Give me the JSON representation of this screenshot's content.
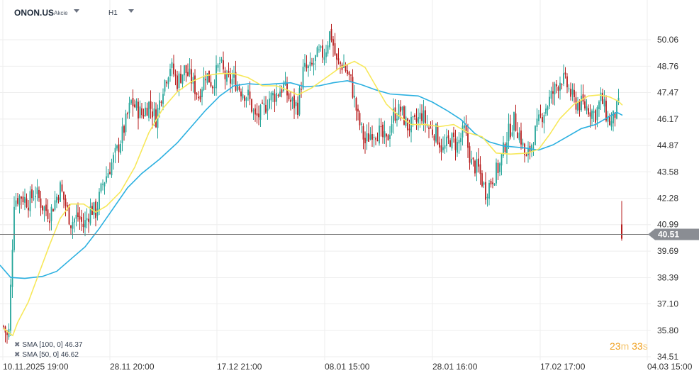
{
  "header": {
    "symbol": "ONON.US",
    "symbol_type": "Akcie",
    "timeframe": "H1"
  },
  "colors": {
    "up": "#26a69a",
    "down": "#b71c1c",
    "sma50": "#f7e85a",
    "sma100": "#2bb0e0",
    "price_line": "#777777",
    "price_tag": "#8a8d93",
    "grid": "#eeeeee"
  },
  "indicators": [
    {
      "label": "SMA [100, 0]",
      "value": "46.37"
    },
    {
      "label": "SMA [50, 0]",
      "value": "46.62"
    }
  ],
  "countdown": {
    "minutes": "23",
    "minutes_unit": "m",
    "seconds": "33",
    "seconds_unit": "s"
  },
  "chart_data": {
    "type": "candlestick",
    "y_axis": {
      "ticks": [
        "50.06",
        "48.76",
        "47.47",
        "46.17",
        "44.87",
        "43.58",
        "42.28",
        "40.99",
        "39.69",
        "38.39",
        "37.10",
        "35.80",
        "34.51"
      ],
      "range": [
        34.51,
        51.3
      ],
      "position": "right"
    },
    "x_axis": {
      "ticks": [
        "10.11.2025  19:00",
        "28.11  20:00",
        "17.12  21:00",
        "08.01  15:00",
        "28.01  16:00",
        "17.02  17:00",
        "04.03  15:00"
      ]
    },
    "current_price": {
      "value": 40.51,
      "label": "40.51"
    },
    "grid": true,
    "series": [
      {
        "name": "SMA [100, 0]",
        "kind": "line",
        "points": [
          [
            0,
            39.0
          ],
          [
            15,
            38.4
          ],
          [
            35,
            38.35
          ],
          [
            60,
            38.45
          ],
          [
            80,
            38.7
          ],
          [
            100,
            39.3
          ],
          [
            120,
            39.9
          ],
          [
            140,
            40.8
          ],
          [
            160,
            41.8
          ],
          [
            180,
            42.8
          ],
          [
            200,
            43.5
          ],
          [
            225,
            44.2
          ],
          [
            250,
            45.0
          ],
          [
            270,
            45.8
          ],
          [
            290,
            46.6
          ],
          [
            310,
            47.3
          ],
          [
            330,
            47.8
          ],
          [
            350,
            47.9
          ],
          [
            370,
            47.85
          ],
          [
            390,
            47.9
          ],
          [
            410,
            47.95
          ],
          [
            430,
            47.75
          ],
          [
            450,
            47.8
          ],
          [
            470,
            47.95
          ],
          [
            490,
            48.05
          ],
          [
            510,
            47.85
          ],
          [
            530,
            47.6
          ],
          [
            550,
            47.4
          ],
          [
            570,
            47.35
          ],
          [
            590,
            47.3
          ],
          [
            610,
            47.0
          ],
          [
            630,
            46.6
          ],
          [
            650,
            46.15
          ],
          [
            670,
            45.45
          ],
          [
            690,
            45.05
          ],
          [
            710,
            44.85
          ],
          [
            740,
            44.75
          ],
          [
            760,
            44.65
          ],
          [
            780,
            44.9
          ],
          [
            800,
            45.3
          ],
          [
            820,
            45.7
          ],
          [
            840,
            45.9
          ],
          [
            860,
            46.3
          ],
          [
            870,
            46.5
          ],
          [
            878,
            46.35
          ]
        ]
      },
      {
        "name": "SMA [50, 0]",
        "kind": "line",
        "points": [
          [
            5,
            35.9
          ],
          [
            12,
            35.7
          ],
          [
            18,
            35.55
          ],
          [
            25,
            36.2
          ],
          [
            40,
            37.2
          ],
          [
            55,
            38.6
          ],
          [
            70,
            40.0
          ],
          [
            85,
            41.3
          ],
          [
            100,
            42.0
          ],
          [
            118,
            42.0
          ],
          [
            135,
            41.6
          ],
          [
            150,
            41.9
          ],
          [
            170,
            42.6
          ],
          [
            190,
            43.8
          ],
          [
            210,
            45.5
          ],
          [
            230,
            46.7
          ],
          [
            250,
            47.5
          ],
          [
            270,
            48.0
          ],
          [
            290,
            48.3
          ],
          [
            310,
            48.4
          ],
          [
            330,
            48.4
          ],
          [
            350,
            48.2
          ],
          [
            370,
            47.8
          ],
          [
            390,
            47.8
          ],
          [
            405,
            47.6
          ],
          [
            420,
            47.35
          ],
          [
            440,
            47.7
          ],
          [
            460,
            48.2
          ],
          [
            480,
            48.7
          ],
          [
            500,
            49.0
          ],
          [
            515,
            48.7
          ],
          [
            530,
            47.8
          ],
          [
            545,
            46.9
          ],
          [
            560,
            46.4
          ],
          [
            580,
            45.9
          ],
          [
            600,
            45.9
          ],
          [
            620,
            45.8
          ],
          [
            640,
            45.9
          ],
          [
            660,
            45.5
          ],
          [
            680,
            45.3
          ],
          [
            700,
            44.5
          ],
          [
            720,
            44.45
          ],
          [
            745,
            44.5
          ],
          [
            760,
            44.7
          ],
          [
            775,
            45.4
          ],
          [
            790,
            46.2
          ],
          [
            810,
            46.9
          ],
          [
            830,
            47.3
          ],
          [
            845,
            47.35
          ],
          [
            860,
            47.25
          ],
          [
            872,
            47.05
          ],
          [
            878,
            46.85
          ]
        ]
      },
      {
        "name": "price",
        "kind": "candle",
        "anchors": [
          [
            5,
            36.0
          ],
          [
            12,
            35.3
          ],
          [
            20,
            42.2
          ],
          [
            30,
            42.4
          ],
          [
            40,
            42.1
          ],
          [
            50,
            42.6
          ],
          [
            60,
            41.9
          ],
          [
            70,
            41.5
          ],
          [
            85,
            42.8
          ],
          [
            100,
            41.1
          ],
          [
            110,
            41.4
          ],
          [
            118,
            40.9
          ],
          [
            128,
            41.8
          ],
          [
            135,
            41.6
          ],
          [
            145,
            43.0
          ],
          [
            155,
            43.8
          ],
          [
            165,
            44.6
          ],
          [
            175,
            45.7
          ],
          [
            185,
            47.0
          ],
          [
            200,
            46.4
          ],
          [
            210,
            46.9
          ],
          [
            220,
            46.2
          ],
          [
            230,
            47.8
          ],
          [
            240,
            48.8
          ],
          [
            250,
            48.0
          ],
          [
            260,
            48.6
          ],
          [
            270,
            48.1
          ],
          [
            280,
            47.3
          ],
          [
            290,
            48.4
          ],
          [
            300,
            47.9
          ],
          [
            310,
            48.9
          ],
          [
            320,
            48.0
          ],
          [
            330,
            48.1
          ],
          [
            340,
            47.6
          ],
          [
            350,
            47.3
          ],
          [
            360,
            46.2
          ],
          [
            370,
            46.5
          ],
          [
            380,
            47.2
          ],
          [
            390,
            47.4
          ],
          [
            400,
            47.8
          ],
          [
            410,
            47.0
          ],
          [
            420,
            46.8
          ],
          [
            428,
            48.6
          ],
          [
            438,
            48.6
          ],
          [
            448,
            49.3
          ],
          [
            458,
            49.4
          ],
          [
            466,
            50.5
          ],
          [
            475,
            48.9
          ],
          [
            485,
            48.8
          ],
          [
            495,
            48.0
          ],
          [
            505,
            46.2
          ],
          [
            515,
            45.0
          ],
          [
            525,
            45.6
          ],
          [
            535,
            45.5
          ],
          [
            545,
            45.0
          ],
          [
            555,
            46.4
          ],
          [
            565,
            46.6
          ],
          [
            575,
            45.8
          ],
          [
            585,
            45.9
          ],
          [
            595,
            46.4
          ],
          [
            605,
            45.7
          ],
          [
            615,
            45.5
          ],
          [
            625,
            44.6
          ],
          [
            635,
            45.2
          ],
          [
            645,
            44.9
          ],
          [
            655,
            45.6
          ],
          [
            665,
            44.0
          ],
          [
            675,
            43.7
          ],
          [
            685,
            42.6
          ],
          [
            695,
            43.3
          ],
          [
            705,
            43.9
          ],
          [
            715,
            45.3
          ],
          [
            725,
            46.1
          ],
          [
            735,
            45.2
          ],
          [
            742,
            44.1
          ],
          [
            752,
            45.2
          ],
          [
            762,
            46.2
          ],
          [
            772,
            46.9
          ],
          [
            782,
            47.6
          ],
          [
            792,
            48.2
          ],
          [
            800,
            47.8
          ],
          [
            810,
            47.0
          ],
          [
            820,
            46.9
          ],
          [
            830,
            46.7
          ],
          [
            840,
            46.4
          ],
          [
            848,
            47.2
          ],
          [
            856,
            46.3
          ],
          [
            862,
            45.9
          ],
          [
            868,
            46.5
          ],
          [
            874,
            46.9
          ]
        ],
        "last_candle": {
          "x": 877,
          "open": 41.0,
          "high": 42.15,
          "low": 40.2,
          "close": 40.3
        }
      }
    ]
  }
}
